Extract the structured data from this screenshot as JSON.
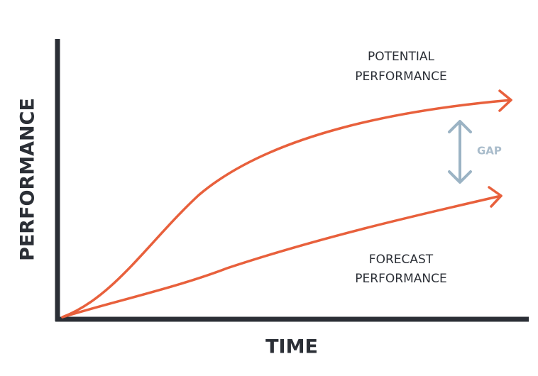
{
  "axes": {
    "x_label": "TIME",
    "y_label": "PERFORMANCE"
  },
  "curves": [
    {
      "label": [
        "POTENTIAL",
        "PERFORMANCE"
      ]
    },
    {
      "label": [
        "FORECAST",
        "PERFORMANCE"
      ]
    }
  ],
  "gap": {
    "label": "GAP"
  }
}
